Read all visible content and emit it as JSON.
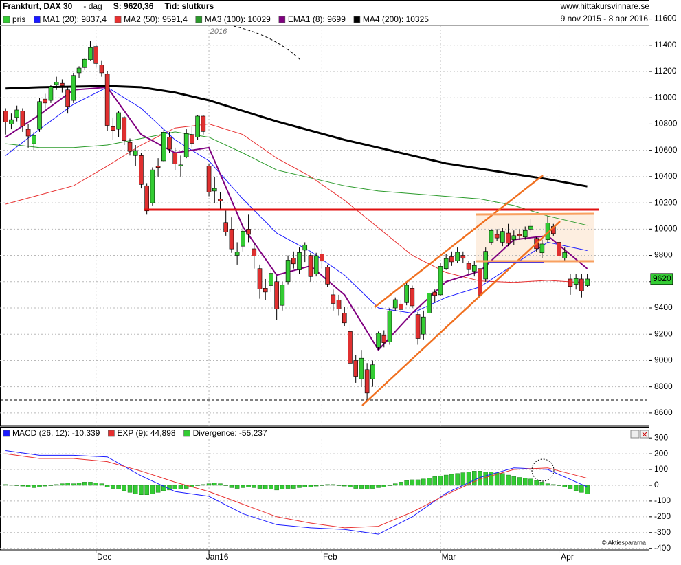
{
  "chart_data": [
    {
      "type": "candlestick",
      "title": "Frankfurt, DAX 30",
      "subtitle": "- dag",
      "close_label": "S: 9620,36",
      "time_label": "Tid: slutkurs",
      "source": "www.hittakursvinnare.se",
      "date_range": "9 nov 2015 - 8 apr 2016",
      "annotation": "2016",
      "candle_name": "pris",
      "up_color": "#33cc33",
      "down_color": "#e03030",
      "candles": [
        [
          10900,
          10920,
          10720,
          10815
        ],
        [
          10800,
          10880,
          10760,
          10833
        ],
        [
          10850,
          10940,
          10820,
          10907
        ],
        [
          10900,
          10920,
          10740,
          10783
        ],
        [
          10760,
          10800,
          10620,
          10708
        ],
        [
          10650,
          10740,
          10600,
          10713
        ],
        [
          10760,
          11000,
          10740,
          10971
        ],
        [
          10990,
          11030,
          10920,
          10960
        ],
        [
          10980,
          11100,
          10960,
          11085
        ],
        [
          11100,
          11160,
          11060,
          11120
        ],
        [
          11110,
          11140,
          11040,
          11092
        ],
        [
          11060,
          11080,
          10880,
          10934
        ],
        [
          10980,
          11190,
          10960,
          11170
        ],
        [
          11190,
          11240,
          11150,
          11226
        ],
        [
          11230,
          11300,
          11210,
          11293
        ],
        [
          11290,
          11430,
          11280,
          11382
        ],
        [
          11390,
          11400,
          11230,
          11261
        ],
        [
          11250,
          11280,
          11160,
          11190
        ],
        [
          11180,
          11200,
          10750,
          10789
        ],
        [
          10780,
          10850,
          10680,
          10752
        ],
        [
          10760,
          10900,
          10700,
          10886
        ],
        [
          10850,
          10860,
          10640,
          10673
        ],
        [
          10660,
          10690,
          10560,
          10592
        ],
        [
          10560,
          10640,
          10480,
          10598
        ],
        [
          10560,
          10580,
          10310,
          10340
        ],
        [
          10330,
          10350,
          10110,
          10139
        ],
        [
          10200,
          10470,
          10180,
          10451
        ],
        [
          10480,
          10540,
          10400,
          10469
        ],
        [
          10520,
          10760,
          10510,
          10738
        ],
        [
          10700,
          10740,
          10580,
          10608
        ],
        [
          10580,
          10620,
          10450,
          10497
        ],
        [
          10480,
          10560,
          10400,
          10489
        ],
        [
          10550,
          10760,
          10540,
          10727
        ],
        [
          10720,
          10780,
          10620,
          10653
        ],
        [
          10700,
          10870,
          10680,
          10860
        ],
        [
          10860,
          10870,
          10720,
          10743
        ],
        [
          10480,
          10500,
          10250,
          10283
        ],
        [
          10290,
          10400,
          10200,
          10310
        ],
        [
          10230,
          10280,
          10150,
          10214
        ],
        [
          10050,
          10140,
          9950,
          9979
        ],
        [
          10000,
          10090,
          9820,
          9849
        ],
        [
          9800,
          9900,
          9730,
          9825
        ],
        [
          9870,
          10040,
          9830,
          9985
        ],
        [
          10000,
          10110,
          9900,
          9960
        ],
        [
          9850,
          9900,
          9700,
          9794
        ],
        [
          9700,
          9730,
          9470,
          9545
        ],
        [
          9550,
          9620,
          9460,
          9521
        ],
        [
          9570,
          9720,
          9520,
          9664
        ],
        [
          9600,
          9640,
          9310,
          9391
        ],
        [
          9420,
          9600,
          9380,
          9574
        ],
        [
          9600,
          9800,
          9580,
          9764
        ],
        [
          9780,
          9830,
          9700,
          9736
        ],
        [
          9690,
          9860,
          9660,
          9822
        ],
        [
          9840,
          9900,
          9750,
          9880
        ],
        [
          9800,
          9820,
          9600,
          9639
        ],
        [
          9660,
          9820,
          9640,
          9798
        ],
        [
          9810,
          9850,
          9700,
          9757
        ],
        [
          9710,
          9730,
          9560,
          9581
        ],
        [
          9500,
          9540,
          9380,
          9434
        ],
        [
          9460,
          9500,
          9340,
          9393
        ],
        [
          9360,
          9410,
          9260,
          9286
        ],
        [
          9220,
          9280,
          8960,
          8979
        ],
        [
          9000,
          9040,
          8830,
          8879
        ],
        [
          8860,
          9080,
          8800,
          9017
        ],
        [
          8930,
          8980,
          8700,
          8752
        ],
        [
          8860,
          9000,
          8800,
          8967
        ],
        [
          9100,
          9220,
          9080,
          9207
        ],
        [
          9190,
          9230,
          9100,
          9135
        ],
        [
          9140,
          9400,
          9120,
          9378
        ],
        [
          9400,
          9480,
          9380,
          9463
        ],
        [
          9430,
          9460,
          9350,
          9388
        ],
        [
          9440,
          9600,
          9420,
          9573
        ],
        [
          9550,
          9570,
          9400,
          9416
        ],
        [
          9350,
          9370,
          9120,
          9167
        ],
        [
          9200,
          9380,
          9160,
          9331
        ],
        [
          9360,
          9520,
          9340,
          9513
        ],
        [
          9520,
          9540,
          9440,
          9495
        ],
        [
          9500,
          9740,
          9490,
          9717
        ],
        [
          9700,
          9810,
          9690,
          9776
        ],
        [
          9790,
          9830,
          9720,
          9751
        ],
        [
          9760,
          9860,
          9740,
          9824
        ],
        [
          9800,
          9830,
          9740,
          9778
        ],
        [
          9740,
          9760,
          9660,
          9692
        ],
        [
          9680,
          9760,
          9640,
          9723
        ],
        [
          9700,
          9730,
          9470,
          9498
        ],
        [
          9620,
          9860,
          9600,
          9831
        ],
        [
          9900,
          10000,
          9880,
          9990
        ],
        [
          9960,
          10000,
          9910,
          9933
        ],
        [
          9900,
          10010,
          9870,
          9983
        ],
        [
          9970,
          10040,
          9870,
          9892
        ],
        [
          9920,
          9990,
          9880,
          9950
        ],
        [
          9960,
          10000,
          9920,
          9949
        ],
        [
          9940,
          10020,
          9920,
          9990
        ],
        [
          10000,
          10080,
          9980,
          10022
        ],
        [
          9930,
          9940,
          9830,
          9851
        ],
        [
          9820,
          9920,
          9780,
          9887
        ],
        [
          9920,
          10100,
          9900,
          10046
        ],
        [
          10020,
          10040,
          9950,
          9966
        ],
        [
          9900,
          9910,
          9760,
          9794
        ],
        [
          9780,
          9860,
          9760,
          9822
        ],
        [
          9620,
          9660,
          9500,
          9564
        ],
        [
          9580,
          9660,
          9540,
          9624
        ],
        [
          9620,
          9660,
          9480,
          9530
        ],
        [
          9570,
          9660,
          9560,
          9620
        ]
      ],
      "line_x": [
        0,
        6,
        12,
        18,
        24,
        30,
        36,
        42,
        48,
        54,
        60,
        66,
        72,
        78,
        84,
        90,
        96,
        103
      ],
      "series": [
        {
          "name": "MA1 (20): 9837,4",
          "color": "#1a1aff",
          "width": 1,
          "values": [
            10560,
            10760,
            10950,
            11080,
            10920,
            10680,
            10520,
            10230,
            9970,
            9830,
            9650,
            9400,
            9360,
            9480,
            9560,
            9730,
            9900,
            9837
          ]
        },
        {
          "name": "MA2 (50): 9591,4",
          "color": "#e83030",
          "width": 1,
          "values": [
            10190,
            10260,
            10330,
            10480,
            10640,
            10770,
            10800,
            10720,
            10540,
            10400,
            10220,
            10010,
            9800,
            9670,
            9605,
            9595,
            9610,
            9591
          ]
        },
        {
          "name": "MA3 (100): 10029",
          "color": "#2a9a2a",
          "width": 1,
          "values": [
            10650,
            10620,
            10620,
            10640,
            10690,
            10740,
            10700,
            10580,
            10450,
            10390,
            10330,
            10290,
            10270,
            10250,
            10230,
            10180,
            10100,
            10029
          ]
        },
        {
          "name": "EMA1 (8): 9699",
          "color": "#800080",
          "width": 2,
          "values": [
            10700,
            10870,
            11060,
            11080,
            10720,
            10580,
            10620,
            10020,
            9650,
            9720,
            9500,
            9080,
            9360,
            9600,
            9680,
            9920,
            9950,
            9699
          ]
        },
        {
          "name": "MA4 (200): 10325",
          "color": "#000000",
          "width": 3,
          "values": [
            11070,
            11080,
            11085,
            11090,
            11080,
            11040,
            10980,
            10900,
            10820,
            10750,
            10680,
            10620,
            10560,
            10500,
            10460,
            10420,
            10380,
            10325
          ]
        }
      ],
      "price_label": 9620,
      "xlim": [
        -1,
        114
      ],
      "xticks": [
        {
          "value": 16,
          "label": "Dec"
        },
        {
          "value": 36,
          "label": "Jan16"
        },
        {
          "value": 56,
          "label": "Feb"
        },
        {
          "value": 77,
          "label": "Mar"
        },
        {
          "value": 98,
          "label": "Apr"
        }
      ],
      "ylim": [
        8500,
        11650
      ],
      "yticks": [
        8600,
        8800,
        9000,
        9200,
        9400,
        9600,
        9800,
        10000,
        10200,
        10400,
        10600,
        10800,
        11000,
        11200,
        11400,
        11600
      ],
      "grid": true
    },
    {
      "type": "macd",
      "line_x": [
        0,
        6,
        12,
        18,
        24,
        30,
        36,
        42,
        48,
        54,
        60,
        66,
        72,
        78,
        84,
        90,
        96,
        103
      ],
      "series": [
        {
          "name": "MACD (26, 12): -10,339",
          "color": "#1a1aff",
          "values": [
            220,
            190,
            190,
            180,
            60,
            -40,
            -70,
            -180,
            -250,
            -270,
            -280,
            -310,
            -200,
            -50,
            50,
            110,
            100,
            -10
          ]
        },
        {
          "name": "EXP (9): 44,898",
          "color": "#e83030",
          "values": [
            200,
            170,
            170,
            150,
            90,
            20,
            -40,
            -120,
            -200,
            -240,
            -270,
            -260,
            -170,
            -60,
            40,
            100,
            110,
            45
          ]
        }
      ],
      "divergence": {
        "name": "Divergence: -55,237",
        "color": "#33cc33",
        "values": [
          5,
          3,
          0,
          -5,
          -10,
          -15,
          -10,
          -5,
          0,
          5,
          10,
          15,
          10,
          15,
          20,
          20,
          15,
          10,
          -10,
          -20,
          -25,
          -35,
          -45,
          -55,
          -60,
          -60,
          -55,
          -45,
          -35,
          -30,
          -25,
          -25,
          -20,
          -10,
          0,
          5,
          10,
          15,
          10,
          0,
          -15,
          -20,
          -15,
          -10,
          -15,
          -20,
          -25,
          -25,
          -30,
          -25,
          -20,
          -20,
          -15,
          -10,
          -10,
          -5,
          0,
          5,
          5,
          0,
          -5,
          -10,
          -20,
          -20,
          -25,
          -20,
          -15,
          -10,
          0,
          10,
          20,
          30,
          35,
          35,
          40,
          45,
          55,
          60,
          65,
          70,
          75,
          80,
          85,
          90,
          90,
          85,
          85,
          80,
          75,
          65,
          55,
          50,
          45,
          40,
          30,
          20,
          10,
          5,
          0,
          -10,
          -20,
          -35,
          -45,
          -55
        ]
      },
      "credit": "© Aktiespararna",
      "ylim": [
        -410,
        340
      ],
      "yticks": [
        -400,
        -300,
        -200,
        -100,
        0,
        100,
        200,
        300
      ],
      "grid": true
    }
  ]
}
